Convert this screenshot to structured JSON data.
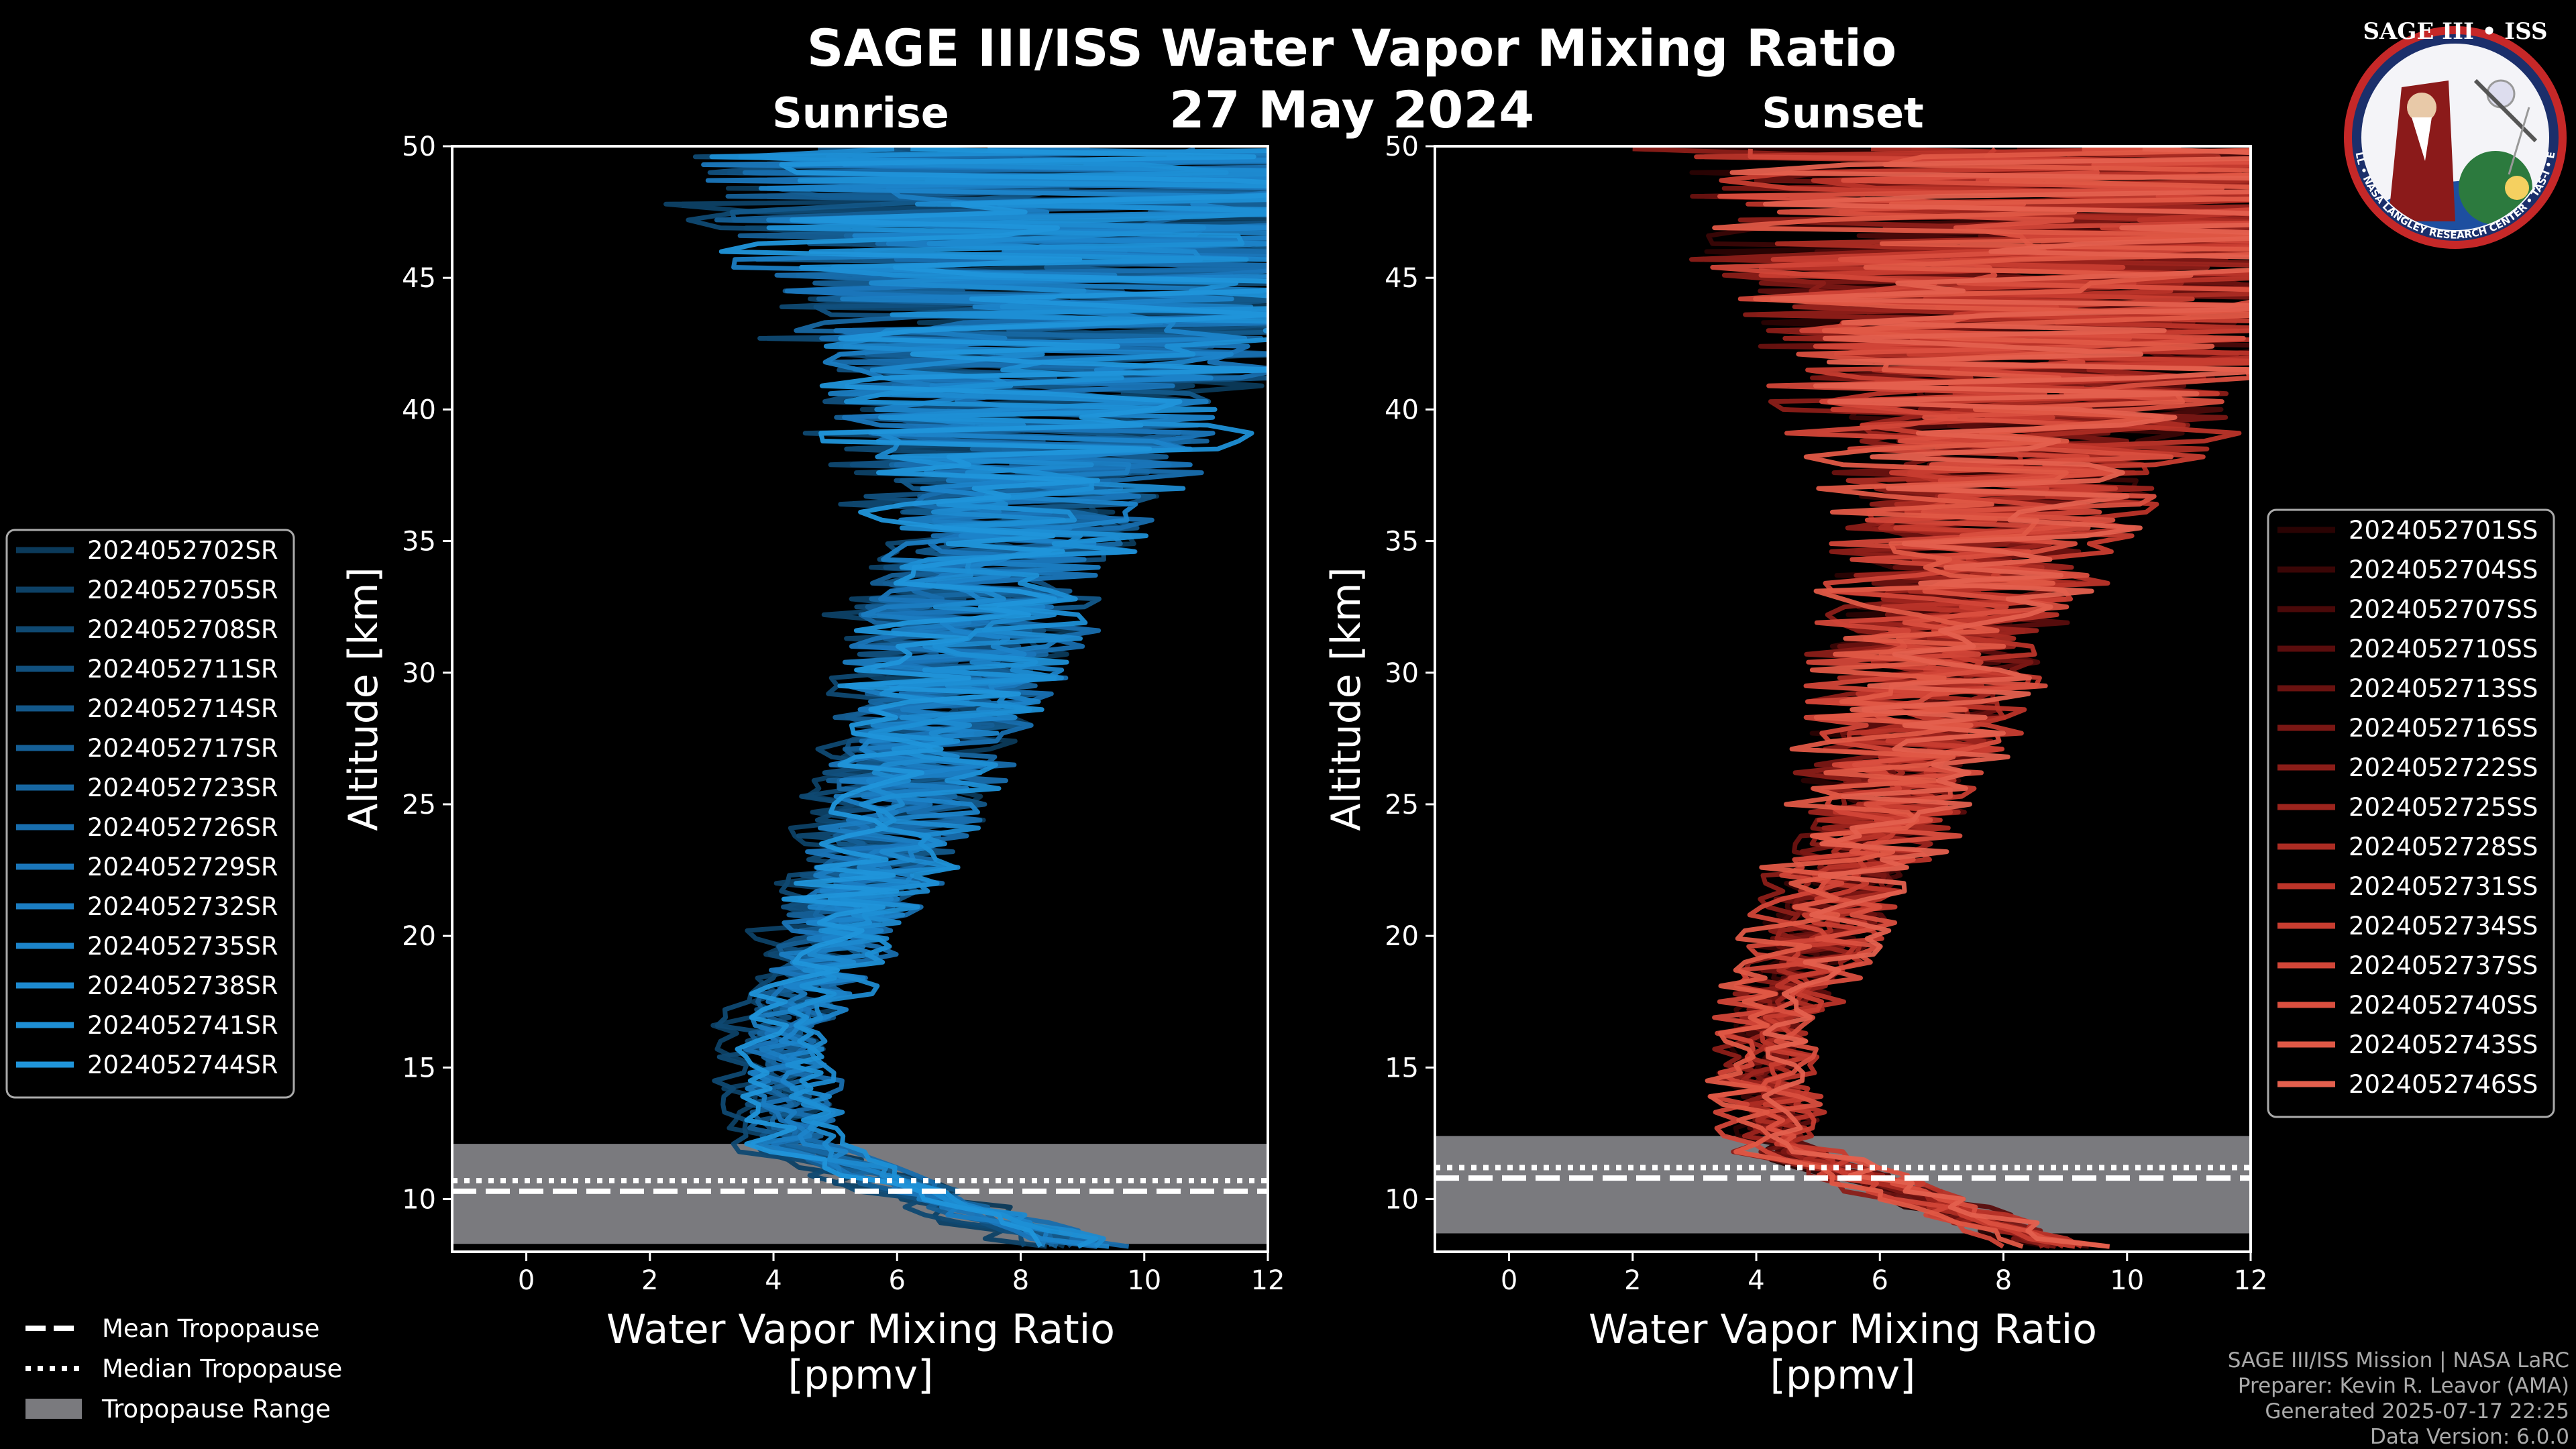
{
  "title": "SAGE III/ISS Water Vapor Mixing Ratio",
  "date": "27 May 2024",
  "colors": {
    "sunrise": "#1f8fd4",
    "sunset": "#e05a4a",
    "range": "#7a7a7e",
    "background": "#000000"
  },
  "legend_common": [
    {
      "label": "Mean Tropopause",
      "style": "dashed"
    },
    {
      "label": "Median Tropopause",
      "style": "dotted"
    },
    {
      "label": "Tropopause Range",
      "style": "patch"
    }
  ],
  "credits": [
    "SAGE III/ISS Mission | NASA LaRC",
    "Preparer: Kevin R. Leavor (AMA)",
    "Generated 2025-07-17 22:25",
    "Data Version: 6.0.0"
  ],
  "logo": {
    "name": "SAGE III • ISS",
    "ring_text": "BALL • NASA LANGLEY RESEARCH CENTER • TAS-I • ESA"
  },
  "chart_data": [
    {
      "type": "line",
      "title": "Sunrise",
      "xlabel": "Water Vapor Mixing Ratio",
      "xlabel2": "[ppmv]",
      "ylabel": "Altitude [km]",
      "xlim": [
        -1.2,
        12
      ],
      "ylim": [
        8,
        50
      ],
      "xticks": [
        0,
        2,
        4,
        6,
        8,
        10,
        12
      ],
      "yticks": [
        10,
        15,
        20,
        25,
        30,
        35,
        40,
        45,
        50
      ],
      "tropopause": {
        "mean": 10.3,
        "median": 10.7,
        "range": [
          8.3,
          12.1
        ]
      },
      "series": [
        {
          "name": "2024052702SR",
          "color": "#0b3a5a"
        },
        {
          "name": "2024052705SR",
          "color": "#0d4166"
        },
        {
          "name": "2024052708SR",
          "color": "#0f4972"
        },
        {
          "name": "2024052711SR",
          "color": "#11507e"
        },
        {
          "name": "2024052714SR",
          "color": "#13588a"
        },
        {
          "name": "2024052717SR",
          "color": "#155f96"
        },
        {
          "name": "2024052723SR",
          "color": "#1767a2"
        },
        {
          "name": "2024052726SR",
          "color": "#186eae"
        },
        {
          "name": "2024052729SR",
          "color": "#1a76ba"
        },
        {
          "name": "2024052732SR",
          "color": "#1b7dc2"
        },
        {
          "name": "2024052735SR",
          "color": "#1c84ca"
        },
        {
          "name": "2024052738SR",
          "color": "#1d8ad0"
        },
        {
          "name": "2024052741SR",
          "color": "#1e8fd5"
        },
        {
          "name": "2024052744SR",
          "color": "#2095da"
        }
      ]
    },
    {
      "type": "line",
      "title": "Sunset",
      "xlabel": "Water Vapor Mixing Ratio",
      "xlabel2": "[ppmv]",
      "ylabel": "Altitude [km]",
      "xlim": [
        -1.2,
        12
      ],
      "ylim": [
        8,
        50
      ],
      "xticks": [
        0,
        2,
        4,
        6,
        8,
        10,
        12
      ],
      "yticks": [
        10,
        15,
        20,
        25,
        30,
        35,
        40,
        45,
        50
      ],
      "tropopause": {
        "mean": 10.8,
        "median": 11.2,
        "range": [
          8.7,
          12.4
        ]
      },
      "series": [
        {
          "name": "2024052701SS",
          "color": "#2a0303"
        },
        {
          "name": "2024052704SS",
          "color": "#3a0606"
        },
        {
          "name": "2024052707SS",
          "color": "#4a0909"
        },
        {
          "name": "2024052710SS",
          "color": "#5a0d0d"
        },
        {
          "name": "2024052713SS",
          "color": "#6a1210"
        },
        {
          "name": "2024052716SS",
          "color": "#7a1714"
        },
        {
          "name": "2024052722SS",
          "color": "#8b1d18"
        },
        {
          "name": "2024052725SS",
          "color": "#9c241d"
        },
        {
          "name": "2024052728SS",
          "color": "#ac2c23"
        },
        {
          "name": "2024052731SS",
          "color": "#bb3429"
        },
        {
          "name": "2024052734SS",
          "color": "#c83d30"
        },
        {
          "name": "2024052737SS",
          "color": "#d24638"
        },
        {
          "name": "2024052740SS",
          "color": "#da4f3f"
        },
        {
          "name": "2024052743SS",
          "color": "#e05846"
        },
        {
          "name": "2024052746SS",
          "color": "#e4604e"
        }
      ]
    }
  ]
}
